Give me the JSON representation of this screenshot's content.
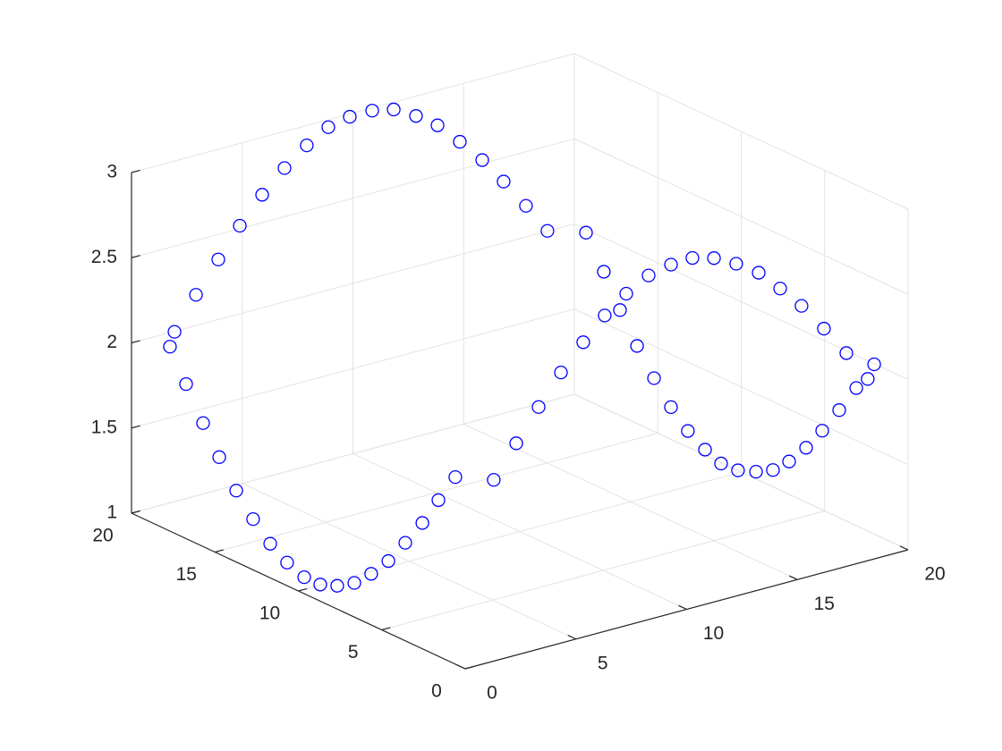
{
  "chart_data": {
    "type": "scatter3",
    "color": "#0000ff",
    "x": [
      0.87,
      0.97,
      1.45,
      1.96,
      2.45,
      4.16,
      5.81,
      7.32,
      8.64,
      9.79,
      10.81,
      11.6,
      12.26,
      12.72,
      13.08,
      13.33,
      13.46,
      13.55,
      13.57,
      14.67,
      13.72,
      13.5,
      13.88,
      14.27,
      14.65,
      15.03,
      15.42,
      15.76,
      16.14,
      16.57,
      16.95,
      17.31,
      17.7,
      18.06,
      18.45,
      18.83,
      19.09,
      19.23,
      18.6,
      18.1,
      17.6,
      17.11,
      16.63,
      16.12,
      15.62,
      15.43,
      14.93,
      14.25,
      13.64,
      13.15,
      12.67,
      12.16,
      10.76,
      8.83,
      6.88,
      5.74,
      4.78,
      3.86,
      2.99,
      2.22,
      1.57,
      1.05,
      0.7,
      0.5,
      0.49,
      0.69,
      1.05,
      1.55,
      2.19,
      1.98,
      1.62,
      1.23
    ],
    "y": [
      18.85,
      18.71,
      18.06,
      17.4,
      16.76,
      17.69,
      18.54,
      19.21,
      19.67,
      19.91,
      19.92,
      19.68,
      19.22,
      18.54,
      17.68,
      16.67,
      15.56,
      14.34,
      13.08,
      12.23,
      9.9,
      8.64,
      8.12,
      7.62,
      7.11,
      6.6,
      6.09,
      5.58,
      5.07,
      4.56,
      4.05,
      3.56,
      3.06,
      2.57,
      2.07,
      1.55,
      1.21,
      1.01,
      1.84,
      2.52,
      3.2,
      3.83,
      4.48,
      5.15,
      5.82,
      6.86,
      7.48,
      7.92,
      8.45,
      9.09,
      9.74,
      10.4,
      9.88,
      8.66,
      7.42,
      8.21,
      7.95,
      7.69,
      7.56,
      7.55,
      7.72,
      8.04,
      8.6,
      9.35,
      10.3,
      11.59,
      13.08,
      14.77,
      16.63,
      17.37,
      17.86,
      18.36
    ],
    "z": [
      2.0,
      2.09,
      2.32,
      2.54,
      2.75,
      2.83,
      2.89,
      2.94,
      2.98,
      2.99,
      2.99,
      2.98,
      2.94,
      2.9,
      2.83,
      2.76,
      2.68,
      2.59,
      2.5,
      2.49,
      2.4,
      2.24,
      2.04,
      1.86,
      1.7,
      1.57,
      1.47,
      1.4,
      1.37,
      1.37,
      1.39,
      1.45,
      1.54,
      1.65,
      1.78,
      1.92,
      1.98,
      2.07,
      2.12,
      2.25,
      2.37,
      2.46,
      2.54,
      2.58,
      2.6,
      2.56,
      2.51,
      2.45,
      2.34,
      2.2,
      2.03,
      1.84,
      1.71,
      1.62,
      1.53,
      1.55,
      1.46,
      1.37,
      1.29,
      1.21,
      1.15,
      1.1,
      1.07,
      1.05,
      1.05,
      1.07,
      1.1,
      1.15,
      1.21,
      1.38,
      1.57,
      1.79
    ],
    "xlim": [
      0,
      20
    ],
    "ylim": [
      0,
      20
    ],
    "zlim": [
      1,
      3
    ],
    "xticks": [
      0,
      5,
      10,
      15,
      20
    ],
    "yticks": [
      0,
      5,
      10,
      15,
      20
    ],
    "zticks": [
      1,
      1.5,
      2,
      2.5,
      3
    ],
    "grid": true
  }
}
